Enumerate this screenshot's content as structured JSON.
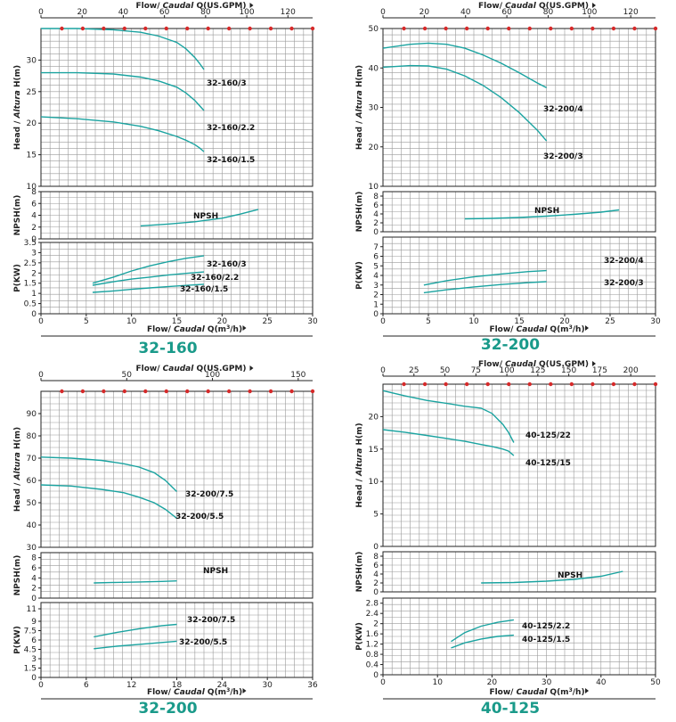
{
  "chart_data": [
    {
      "id": "p1",
      "type": "line",
      "title": "32-160",
      "gpm_label_parts": [
        "Flow/ ",
        "Caudal",
        " Q(US.GPM)"
      ],
      "flow_label_parts": [
        "Flow/ ",
        "Caudal",
        " Q(m",
        "3",
        "/h)"
      ],
      "gpm_ticks": [
        "0",
        "20",
        "40",
        "60",
        "80",
        "100",
        "120"
      ],
      "gpm_max": 132,
      "x_ticks": [
        "0",
        "5",
        "10",
        "15",
        "20",
        "25",
        "30"
      ],
      "xlim": [
        0,
        30
      ],
      "head": {
        "ylabel_parts": [
          "Head / ",
          "Altura",
          " H(m)"
        ],
        "ylim": [
          10,
          35
        ],
        "yticks": [
          10,
          15,
          20,
          25,
          30
        ],
        "series": [
          {
            "name": "32-160/3",
            "x": [
              0,
              4,
              8,
              11,
              13,
              15,
              16,
              17,
              17.5,
              18
            ],
            "y": [
              35,
              35,
              34.8,
              34.4,
              33.8,
              32.8,
              31.8,
              30.4,
              29.5,
              28.5
            ]
          },
          {
            "name": "32-160/2.2",
            "x": [
              0,
              4,
              8,
              11,
              13,
              15,
              16,
              17,
              17.5,
              18
            ],
            "y": [
              28,
              28,
              27.8,
              27.3,
              26.7,
              25.7,
              24.8,
              23.6,
              22.8,
              22
            ]
          },
          {
            "name": "32-160/1.5",
            "x": [
              0,
              4,
              8,
              11,
              13,
              15,
              16,
              17,
              17.5,
              18
            ],
            "y": [
              21,
              20.7,
              20.2,
              19.5,
              18.8,
              17.9,
              17.3,
              16.6,
              16.1,
              15.5
            ]
          }
        ]
      },
      "npsh": {
        "ylabel": "NPSH(m)",
        "ylim": [
          0,
          8
        ],
        "yticks": [
          0,
          2,
          4,
          6,
          8
        ],
        "tick_labels": [
          "0",
          "2",
          "4",
          "6",
          "8"
        ],
        "series": [
          {
            "name": "NPSH",
            "x": [
              11,
              14,
              17,
              20,
              22,
              24
            ],
            "y": [
              2.2,
              2.5,
              2.9,
              3.5,
              4.2,
              5
            ]
          }
        ]
      },
      "power": {
        "ylabel": "P(KW)",
        "ylim": [
          0,
          3.5
        ],
        "yticks": [
          0,
          0.5,
          1,
          1.5,
          2,
          2.5,
          3,
          3.5
        ],
        "tick_labels": [
          "0",
          "0.5",
          "1",
          "1.5",
          "2",
          "2.5",
          "3",
          "3.5"
        ],
        "series": [
          {
            "name": "32-160/3",
            "x": [
              5.7,
              8,
              10,
              12,
              14,
              16,
              18
            ],
            "y": [
              1.5,
              1.8,
              2.1,
              2.35,
              2.55,
              2.72,
              2.85
            ]
          },
          {
            "name": "32-160/2.2",
            "x": [
              5.7,
              8,
              10,
              12,
              14,
              16,
              18
            ],
            "y": [
              1.4,
              1.57,
              1.7,
              1.8,
              1.9,
              1.98,
              2.05
            ]
          },
          {
            "name": "32-160/1.5",
            "x": [
              5.7,
              8,
              10,
              12,
              14,
              16,
              18
            ],
            "y": [
              1.05,
              1.12,
              1.2,
              1.27,
              1.33,
              1.39,
              1.45
            ]
          }
        ]
      }
    },
    {
      "id": "p2",
      "type": "line",
      "title": "32-200",
      "gpm_label_parts": [
        "Flow/ ",
        "Caudal",
        " Q(US.GPM)"
      ],
      "flow_label_parts": [
        "Flow/ ",
        "Caudal",
        " Q(m",
        "3",
        "/h)"
      ],
      "gpm_ticks": [
        "0",
        "20",
        "40",
        "60",
        "80",
        "100",
        "120"
      ],
      "gpm_max": 132,
      "x_ticks": [
        "0",
        "5",
        "10",
        "15",
        "20",
        "25",
        "30"
      ],
      "xlim": [
        0,
        30
      ],
      "head": {
        "ylabel_parts": [
          "Head / ",
          "Altura",
          " H(m)"
        ],
        "ylim": [
          10,
          50
        ],
        "yticks": [
          10,
          20,
          30,
          40,
          50
        ],
        "series": [
          {
            "name": "32-200/4",
            "x": [
              0,
              3,
              5,
              7,
              9,
              11,
              13,
              15,
              17,
              18
            ],
            "y": [
              45,
              46,
              46.3,
              46,
              45,
              43.3,
              41.2,
              38.8,
              36.2,
              35
            ]
          },
          {
            "name": "32-200/3",
            "x": [
              0,
              3,
              5,
              7,
              9,
              11,
              13,
              15,
              17,
              18
            ],
            "y": [
              40.2,
              40.6,
              40.5,
              39.7,
              38,
              35.6,
              32.5,
              28.7,
              24.2,
              21.5
            ]
          }
        ]
      },
      "npsh": {
        "ylabel": "NPSH(m)",
        "ylim": [
          0,
          9
        ],
        "yticks": [
          0,
          2,
          4,
          6,
          8
        ],
        "tick_labels": [
          "0",
          "2",
          "4",
          "6",
          "8"
        ],
        "series": [
          {
            "name": "NPSH",
            "x": [
              9,
              12,
              15,
              18,
              21,
              24,
              26
            ],
            "y": [
              2.9,
              3,
              3.2,
              3.5,
              3.9,
              4.4,
              4.9
            ]
          }
        ]
      },
      "power": {
        "ylabel": "P(KW)",
        "ylim": [
          0,
          8
        ],
        "yticks": [
          0,
          1,
          2,
          3,
          4,
          5,
          6,
          7
        ],
        "tick_labels": [
          "0",
          "1",
          "2",
          "3",
          "4",
          "5",
          "6",
          "7"
        ],
        "series": [
          {
            "name": "32-200/4",
            "x": [
              4.5,
              7,
              10,
              13,
              16,
              18
            ],
            "y": [
              3,
              3.45,
              3.85,
              4.15,
              4.4,
              4.5
            ]
          },
          {
            "name": "32-200/3",
            "x": [
              4.5,
              7,
              10,
              13,
              16,
              18
            ],
            "y": [
              2.2,
              2.5,
              2.8,
              3.05,
              3.25,
              3.35
            ]
          }
        ]
      }
    },
    {
      "id": "p3",
      "type": "line",
      "title": "32-200",
      "gpm_label_parts": [
        "Flow/ ",
        "Caudal",
        " Q(US.GPM)"
      ],
      "flow_label_parts": [
        "Flow/ ",
        "Caudal",
        " Q(m",
        "3",
        "/h)"
      ],
      "gpm_ticks": [
        "0",
        "50",
        "100",
        "150"
      ],
      "gpm_max": 158.4,
      "x_ticks": [
        "0",
        "6",
        "12",
        "18",
        "24",
        "30",
        "36"
      ],
      "xlim": [
        0,
        36
      ],
      "head": {
        "ylabel_parts": [
          "Head / ",
          "Altura",
          " H(m)"
        ],
        "ylim": [
          30,
          100
        ],
        "yticks": [
          30,
          40,
          50,
          60,
          70,
          80,
          90
        ],
        "series": [
          {
            "name": "32-200/7.5",
            "x": [
              0,
              4,
              8,
              11,
              13,
              15,
              16.5,
              18
            ],
            "y": [
              70.5,
              70,
              69,
              67.5,
              66,
              63.5,
              60,
              55
            ]
          },
          {
            "name": "32-200/5.5",
            "x": [
              0,
              4,
              8,
              11,
              13,
              15,
              16.5,
              18
            ],
            "y": [
              58,
              57.5,
              56,
              54.5,
              52.5,
              50,
              47,
              43
            ]
          }
        ]
      },
      "npsh": {
        "ylabel": "NPSH(m)",
        "ylim": [
          0,
          9
        ],
        "yticks": [
          0,
          2,
          4,
          6,
          8
        ],
        "tick_labels": [
          "0",
          "2",
          "4",
          "6",
          "8"
        ],
        "series": [
          {
            "name": "NPSH",
            "x": [
              7,
              10,
              13,
              16,
              18
            ],
            "y": [
              3,
              3.1,
              3.2,
              3.3,
              3.4
            ]
          }
        ]
      },
      "power": {
        "ylabel": "P(KW)",
        "ylim": [
          0,
          12
        ],
        "yticks": [
          0,
          1.5,
          3,
          4.5,
          6,
          7.5,
          9,
          11
        ],
        "tick_labels": [
          "0",
          "1.5",
          "3",
          "4.5",
          "6",
          "7.5",
          "9",
          "11"
        ],
        "series": [
          {
            "name": "32-200/7.5",
            "x": [
              7,
              10,
              13,
              16,
              18
            ],
            "y": [
              6.5,
              7.2,
              7.8,
              8.3,
              8.5
            ]
          },
          {
            "name": "32-200/5.5",
            "x": [
              7,
              10,
              13,
              16,
              18
            ],
            "y": [
              4.6,
              5,
              5.3,
              5.6,
              5.8
            ]
          }
        ]
      }
    },
    {
      "id": "p4",
      "type": "line",
      "title": "40-125",
      "gpm_label_parts": [
        "Flow/ ",
        "Caudal",
        " Q(US.GPM)"
      ],
      "flow_label_parts": [
        "Flow/ ",
        "Caudal",
        " Q(m",
        "3",
        "/h)"
      ],
      "gpm_ticks": [
        "0",
        "25",
        "50",
        "75",
        "100",
        "125",
        "150",
        "175",
        "200"
      ],
      "gpm_max": 220,
      "x_ticks": [
        "0",
        "10",
        "20",
        "30",
        "40",
        "50"
      ],
      "xlim": [
        0,
        50
      ],
      "head": {
        "ylabel_parts": [
          "Head / ",
          "Altura",
          " H(m)"
        ],
        "ylim": [
          0,
          25
        ],
        "yticks": [
          0,
          5,
          10,
          15,
          20
        ],
        "series": [
          {
            "name": "40-125/22",
            "x": [
              0,
              4,
              8,
              12,
              15,
              17,
              18,
              20,
              22,
              23,
              24
            ],
            "y": [
              24,
              23.2,
              22.5,
              22,
              21.6,
              21.4,
              21.3,
              20.5,
              18.8,
              17.6,
              16
            ]
          },
          {
            "name": "40-125/15",
            "x": [
              0,
              4,
              8,
              12,
              15,
              18,
              20,
              22,
              23,
              24
            ],
            "y": [
              18,
              17.6,
              17.1,
              16.6,
              16.2,
              15.7,
              15.4,
              15,
              14.7,
              14
            ]
          }
        ]
      },
      "npsh": {
        "ylabel": "NPSH(m)",
        "ylim": [
          0,
          9
        ],
        "yticks": [
          0,
          2,
          4,
          6,
          8
        ],
        "tick_labels": [
          "0",
          "2",
          "4",
          "6",
          "8"
        ],
        "series": [
          {
            "name": "NPSH",
            "x": [
              18,
              24,
              30,
              35,
              40,
              44
            ],
            "y": [
              2,
              2.1,
              2.4,
              2.8,
              3.5,
              4.6
            ]
          }
        ]
      },
      "power": {
        "ylabel": "P(KW)",
        "ylim": [
          0,
          3
        ],
        "yticks": [
          0,
          0.4,
          0.8,
          1.2,
          1.6,
          2,
          2.4,
          2.8
        ],
        "tick_labels": [
          "0",
          "0.4",
          "0.8",
          "1.2",
          "1.6",
          "2",
          "2.4",
          "2.8"
        ],
        "series": [
          {
            "name": "40-125/2.2",
            "x": [
              12.5,
              15,
              18,
              21,
              24
            ],
            "y": [
              1.3,
              1.65,
              1.9,
              2.05,
              2.15
            ]
          },
          {
            "name": "40-125/1.5",
            "x": [
              12.5,
              15,
              18,
              21,
              24
            ],
            "y": [
              1.05,
              1.25,
              1.4,
              1.5,
              1.55
            ]
          }
        ]
      }
    }
  ],
  "colors": {
    "curve": "#1aa3a0",
    "gpm_marker": "#d62a2a",
    "title": "#1a9a8a"
  }
}
